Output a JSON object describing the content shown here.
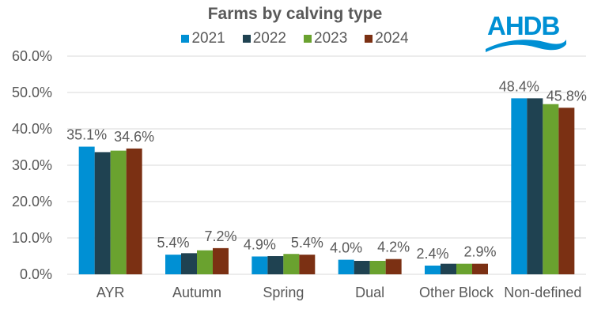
{
  "chart_data": {
    "type": "bar",
    "title": "Farms by calving type",
    "xlabel": "",
    "ylabel": "",
    "ylim": [
      0,
      60
    ],
    "yticks": [
      "0.0%",
      "10.0%",
      "20.0%",
      "30.0%",
      "40.0%",
      "50.0%",
      "60.0%"
    ],
    "grid": true,
    "legend_position": "top",
    "categories": [
      "AYR",
      "Autumn",
      "Spring",
      "Dual",
      "Other Block",
      "Non-defined"
    ],
    "series": [
      {
        "name": "2021",
        "color": "#0090d4",
        "values": [
          35.1,
          5.4,
          4.9,
          4.0,
          2.4,
          48.4
        ]
      },
      {
        "name": "2022",
        "color": "#1f4251",
        "values": [
          33.6,
          5.8,
          5.0,
          3.7,
          2.9,
          48.4
        ]
      },
      {
        "name": "2023",
        "color": "#6aa22f",
        "values": [
          34.0,
          6.6,
          5.6,
          3.7,
          2.9,
          46.8
        ]
      },
      {
        "name": "2024",
        "color": "#7b3013",
        "values": [
          34.6,
          7.2,
          5.4,
          4.2,
          2.9,
          45.8
        ]
      }
    ],
    "data_labels": [
      {
        "category": "AYR",
        "left": "35.1%",
        "right": "34.6%"
      },
      {
        "category": "Autumn",
        "left": "5.4%",
        "right": "7.2%"
      },
      {
        "category": "Spring",
        "left": "4.9%",
        "right": "5.4%"
      },
      {
        "category": "Dual",
        "left": "4.0%",
        "right": "4.2%"
      },
      {
        "category": "Other Block",
        "left": "2.4%",
        "right": "2.9%"
      },
      {
        "category": "Non-defined",
        "left": "48.4%",
        "right": "45.8%"
      }
    ]
  },
  "header": {
    "title": "Farms by calving type",
    "legend": [
      {
        "label": "2021",
        "color": "#0090d4"
      },
      {
        "label": "2022",
        "color": "#1f4251"
      },
      {
        "label": "2023",
        "color": "#6aa22f"
      },
      {
        "label": "2024",
        "color": "#7b3013"
      }
    ]
  },
  "logo": {
    "text": "AHDB",
    "color": "#0090d4"
  }
}
